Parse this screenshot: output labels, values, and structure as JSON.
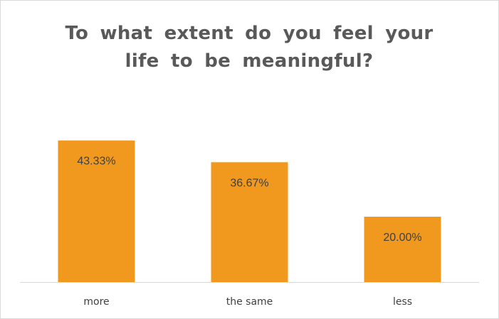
{
  "chart_data": {
    "type": "bar",
    "title_lines": [
      "To what extent do you feel your",
      "life to be meaningful?"
    ],
    "categories": [
      "more",
      "the same",
      "less"
    ],
    "values": [
      43.33,
      36.67,
      20.0
    ],
    "data_labels": [
      "43.33%",
      "36.67%",
      "20.00%"
    ],
    "xlabel": "",
    "ylabel": "",
    "ylim": [
      0,
      50
    ],
    "grid": false,
    "legend": "none",
    "bar_color": "#f0991e",
    "axis_color": "#d9d9d9",
    "text_color": "#404040"
  }
}
